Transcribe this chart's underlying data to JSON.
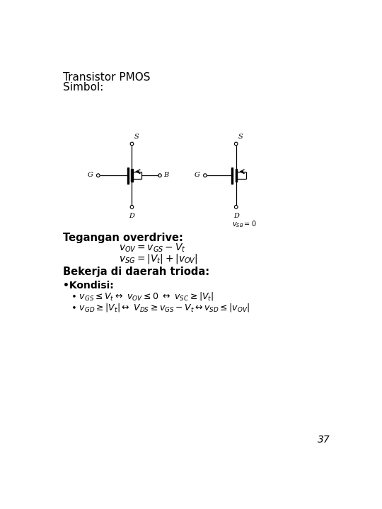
{
  "title": "Transistor PMOS",
  "subtitle": "Simbol:",
  "bg_color": "#ffffff",
  "text_color": "#000000",
  "page_number": "37",
  "section1_heading": "Tegangan overdrive:",
  "eq1": "$v_{OV} = v_{GS} - V_t$",
  "eq2": "$v_{SG} =|V_t| + |v_{OV}|$",
  "section2_heading": "Bekerja di daerah trioda:",
  "bullet_heading": "•Kondisi:",
  "cond1": "$\\bullet\\ v_{GS} \\leq V_t \\leftrightarrow\\ v_{OV} \\leq 0\\ \\leftrightarrow\\ v_{SC} \\geq |V_t|$",
  "cond2": "$\\bullet\\ v_{GD} \\geq |V_t| \\leftrightarrow\\ V_{DS} \\geq v_{GS} - V_t \\leftrightarrow v_{SD} \\leq |v_{OV}|$",
  "vsb_label": "$v_{SB} = 0$",
  "lw_thin": 0.9,
  "lw_thick": 3.5
}
